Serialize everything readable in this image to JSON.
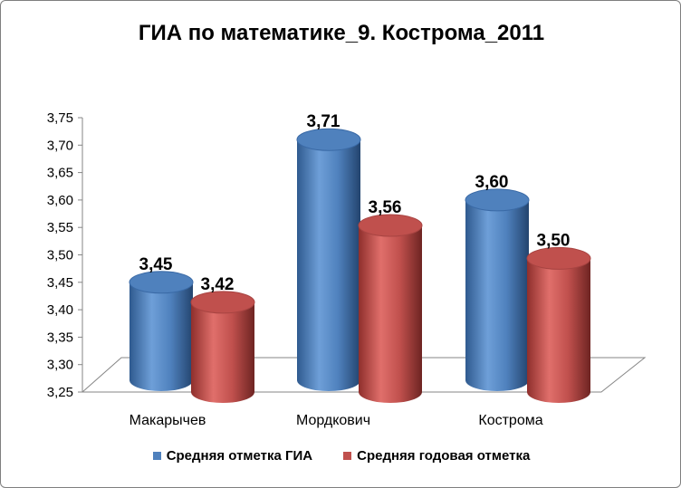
{
  "chart_data": {
    "type": "bar",
    "title": "ГИА по математике_9. Кострома_2011",
    "categories": [
      "Макарычев",
      "Мордкович",
      "Кострома"
    ],
    "series": [
      {
        "name": "Средняя отметка ГИА",
        "values": [
          3.45,
          3.71,
          3.6
        ],
        "labels": [
          "3,45",
          "3,71",
          "3,60"
        ],
        "color": "#4f81bd"
      },
      {
        "name": "Средняя годовая отметка",
        "values": [
          3.42,
          3.56,
          3.5
        ],
        "labels": [
          "3,42",
          "3,56",
          "3,50"
        ],
        "color": "#c0504d"
      }
    ],
    "ylim": [
      3.25,
      3.75
    ],
    "yticks": [
      "3,25",
      "3,30",
      "3,35",
      "3,40",
      "3,45",
      "3,50",
      "3,55",
      "3,60",
      "3,65",
      "3,70",
      "3,75"
    ],
    "grid": false,
    "legend_position": "bottom",
    "style": "3d-cylinder"
  }
}
